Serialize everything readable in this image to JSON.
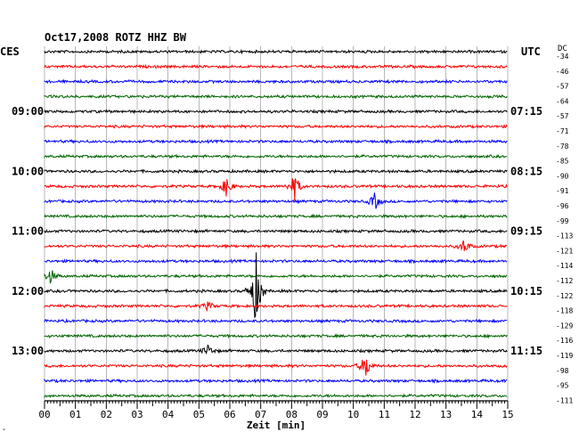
{
  "header": {
    "title": "Oct17,2008   ROTZ HHZ BW",
    "left_tz": "CES",
    "right_tz": "UTC",
    "dc_label": "DC",
    "corner_mark": "ˇ"
  },
  "colors": {
    "trace_cycle": [
      "#000000",
      "#ff0000",
      "#0000ff",
      "#006400"
    ],
    "grid": "#888888",
    "axis": "#000000",
    "background": "#ffffff"
  },
  "chart_data": {
    "type": "line",
    "title": "Oct17,2008   ROTZ HHZ BW",
    "xlabel": "Zeit [min]",
    "xlim": [
      0,
      15
    ],
    "x_ticks": [
      "00",
      "01",
      "02",
      "03",
      "04",
      "05",
      "06",
      "07",
      "08",
      "09",
      "10",
      "11",
      "12",
      "13",
      "14",
      "15"
    ],
    "rows": 24,
    "row_minutes": 15,
    "left_time_labels": [
      {
        "row": 4,
        "label": "09:00"
      },
      {
        "row": 8,
        "label": "10:00"
      },
      {
        "row": 12,
        "label": "11:00"
      },
      {
        "row": 16,
        "label": "12:00"
      },
      {
        "row": 20,
        "label": "13:00"
      }
    ],
    "right_time_labels": [
      {
        "row": 4,
        "label": "07:15"
      },
      {
        "row": 8,
        "label": "08:15"
      },
      {
        "row": 12,
        "label": "09:15"
      },
      {
        "row": 16,
        "label": "10:15"
      },
      {
        "row": 20,
        "label": "11:15"
      }
    ],
    "dc_offsets": [
      "-34",
      "-46",
      "-57",
      "-64",
      "-57",
      "-71",
      "-78",
      "-85",
      "-90",
      "-91",
      "-96",
      "-99",
      "-113",
      "-121",
      "-114",
      "-112",
      "-122",
      "-118",
      "-129",
      "-116",
      "-119",
      "-98",
      "-95",
      "-111"
    ],
    "events": [
      {
        "row": 9,
        "minute": 5.9,
        "amplitude": 0.7
      },
      {
        "row": 9,
        "minute": 8.1,
        "amplitude": 0.9
      },
      {
        "row": 10,
        "minute": 10.7,
        "amplitude": 0.6
      },
      {
        "row": 13,
        "minute": 13.6,
        "amplitude": 0.5
      },
      {
        "row": 16,
        "minute": 6.85,
        "amplitude": 2.6
      },
      {
        "row": 17,
        "minute": 5.3,
        "amplitude": 0.3
      },
      {
        "row": 20,
        "minute": 5.3,
        "amplitude": 0.4
      },
      {
        "row": 21,
        "minute": 10.4,
        "amplitude": 0.9
      },
      {
        "row": 15,
        "minute": 0.2,
        "amplitude": 0.5
      }
    ]
  }
}
